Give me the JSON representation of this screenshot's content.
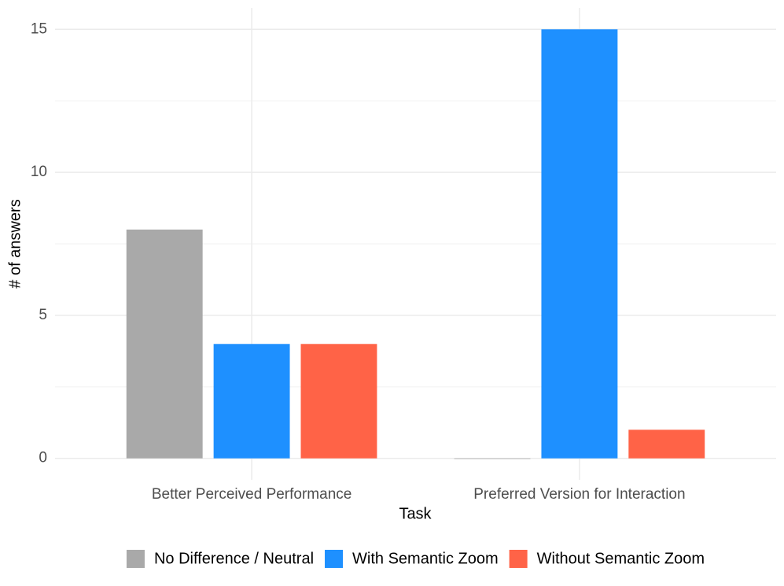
{
  "chart_data": {
    "type": "bar",
    "x_label": "Task",
    "y_label": "# of answers",
    "categories": [
      "Better Perceived Performance",
      "Preferred Version for Interaction"
    ],
    "series": [
      {
        "name": "No Difference / Neutral",
        "color": "#a9a9a9",
        "values": [
          8,
          0
        ]
      },
      {
        "name": "With Semantic Zoom",
        "color": "#1e90ff",
        "values": [
          4,
          15
        ]
      },
      {
        "name": "Without Semantic Zoom",
        "color": "#ff6347",
        "values": [
          4,
          1
        ]
      }
    ],
    "ylim": [
      -0.75,
      15.75
    ],
    "yticks": [
      0,
      5,
      10,
      15
    ],
    "grid": true,
    "legend": "bottom"
  }
}
